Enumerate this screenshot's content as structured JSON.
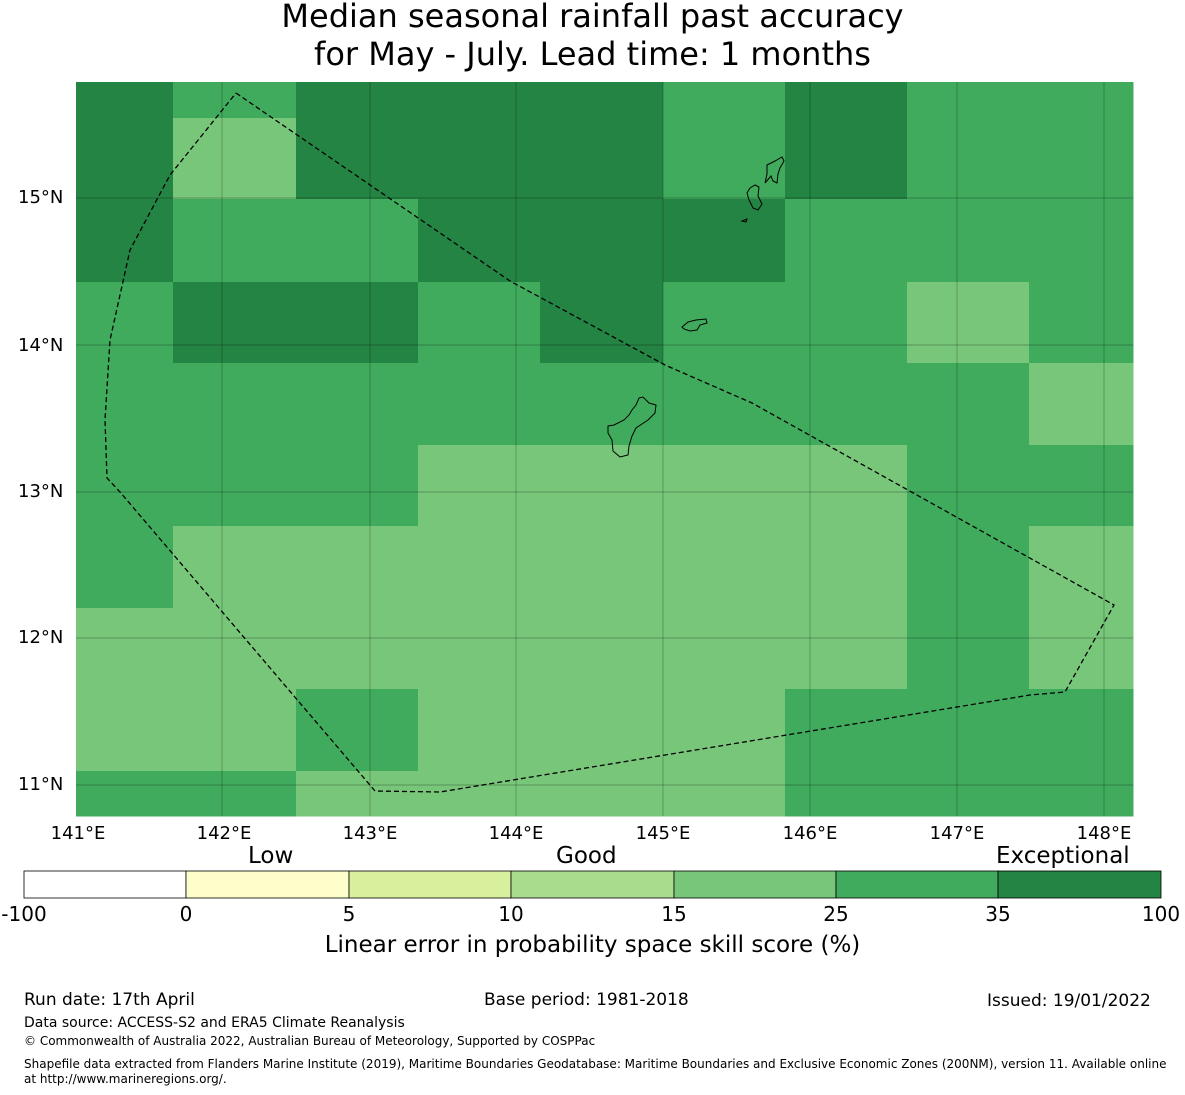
{
  "title_line1": "Median seasonal rainfall past accuracy",
  "title_line2": "for May - July. Lead time: 1 months",
  "map": {
    "lon_range": [
      141.0,
      148.2
    ],
    "lat_range": [
      10.8,
      15.8
    ],
    "lat_labels": [
      "15°N",
      "14°N",
      "13°N",
      "12°N",
      "11°N"
    ],
    "lon_labels": [
      "141°E",
      "142°E",
      "143°E",
      "144°E",
      "145°E",
      "146°E",
      "147°E",
      "148°E"
    ],
    "grid_levels_note_free": true,
    "grid_values": [
      [
        6,
        4,
        6,
        6,
        6,
        5,
        6,
        5,
        5
      ],
      [
        6,
        5,
        5,
        6,
        6,
        6,
        5,
        5,
        5
      ],
      [
        5,
        6,
        6,
        5,
        6,
        5,
        5,
        4,
        5
      ],
      [
        5,
        5,
        5,
        5,
        5,
        5,
        5,
        5,
        4
      ],
      [
        5,
        5,
        5,
        4,
        4,
        4,
        4,
        5,
        5
      ],
      [
        5,
        4,
        4,
        4,
        4,
        4,
        4,
        5,
        4
      ],
      [
        4,
        4,
        4,
        4,
        4,
        4,
        4,
        5,
        4
      ],
      [
        4,
        4,
        5,
        4,
        4,
        4,
        5,
        5,
        5
      ],
      [
        5,
        5,
        4,
        4,
        4,
        4,
        5,
        5,
        5
      ]
    ]
  },
  "colorbar": {
    "categories": [
      "Low",
      "Good",
      "Exceptional"
    ],
    "ticks": [
      "-100",
      "0",
      "5",
      "10",
      "15",
      "25",
      "35",
      "100"
    ],
    "colors": [
      "#ffffff",
      "#fefecb",
      "#d8f09e",
      "#aadc8e",
      "#78c679",
      "#41ab5d",
      "#238443"
    ],
    "label": "Linear error in probability space skill score (%)"
  },
  "footer": {
    "run_date": "Run date: 17th April",
    "base_period": "Base period: 1981-2018",
    "issued": "Issued: 19/01/2022",
    "data_source": "Data source: ACCESS-S2 and ERA5 Climate Reanalysis",
    "copyright": "© Commonwealth of Australia 2022, Australian Bureau of Meteorology, Supported by COSPPac",
    "shapefile_line1": "Shapefile data extracted from Flanders Marine Institute (2019), Maritime Boundaries Geodatabase: Maritime Boundaries and Exclusive Economic Zones (200NM), version 11. Available online",
    "shapefile_line2": "at http://www.marineregions.org/."
  }
}
